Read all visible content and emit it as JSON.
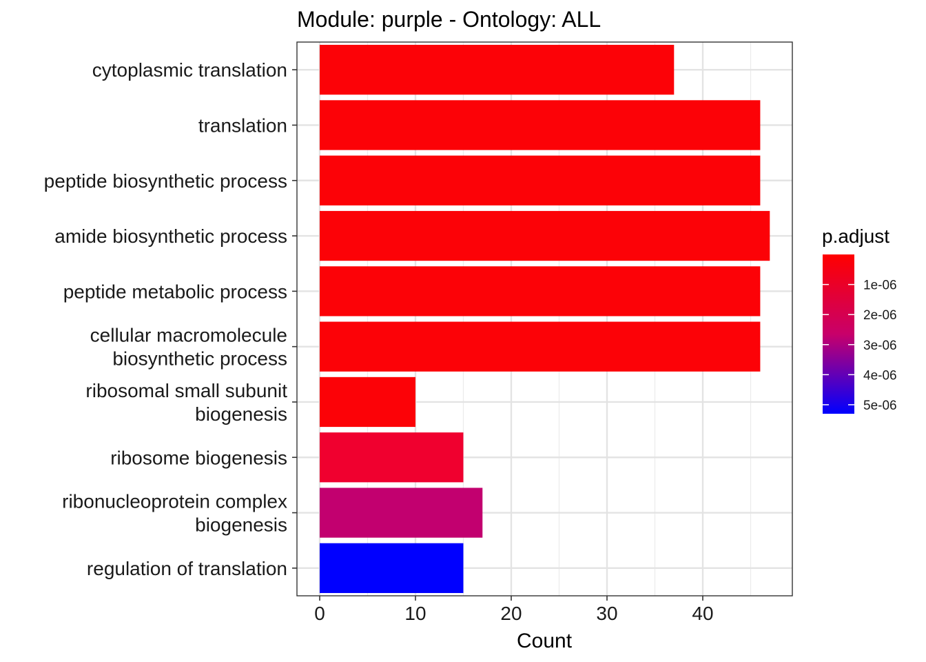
{
  "chart_data": {
    "type": "bar",
    "orientation": "horizontal",
    "title": "Module: purple - Ontology: ALL",
    "xlabel": "Count",
    "ylabel": "",
    "xlim": [
      0,
      49
    ],
    "x_ticks": [
      0,
      10,
      20,
      30,
      40
    ],
    "grid": true,
    "categories": [
      [
        "cytoplasmic translation"
      ],
      [
        "translation"
      ],
      [
        "peptide biosynthetic process"
      ],
      [
        "amide biosynthetic process"
      ],
      [
        "peptide metabolic process"
      ],
      [
        "cellular macromolecule",
        "biosynthetic process"
      ],
      [
        "ribosomal small subunit",
        "biogenesis"
      ],
      [
        "ribosome biogenesis"
      ],
      [
        "ribonucleoprotein complex",
        "biogenesis"
      ],
      [
        "regulation of translation"
      ]
    ],
    "values": [
      37,
      46,
      46,
      47,
      46,
      46,
      10,
      15,
      17,
      15
    ],
    "p_adjust": [
      2e-08,
      3e-08,
      3e-08,
      4e-08,
      3e-08,
      3e-08,
      5e-08,
      1.2e-06,
      2.5e-06,
      5.3e-06
    ],
    "bar_colors": [
      "#FC0207",
      "#FC0207",
      "#FC0207",
      "#FC0207",
      "#FC0207",
      "#FC0207",
      "#FC0207",
      "#F0002F",
      "#C2006F",
      "#0000FF"
    ],
    "legend": {
      "title": "p.adjust",
      "placement": "right",
      "color_low": "#FF0000",
      "color_high": "#0000FF",
      "range": [
        0,
        5.3e-06
      ],
      "tick_values": [
        1e-06,
        2e-06,
        3e-06,
        4e-06,
        5e-06
      ],
      "tick_labels": [
        "1e-06",
        "2e-06",
        "3e-06",
        "4e-06",
        "5e-06"
      ]
    }
  }
}
